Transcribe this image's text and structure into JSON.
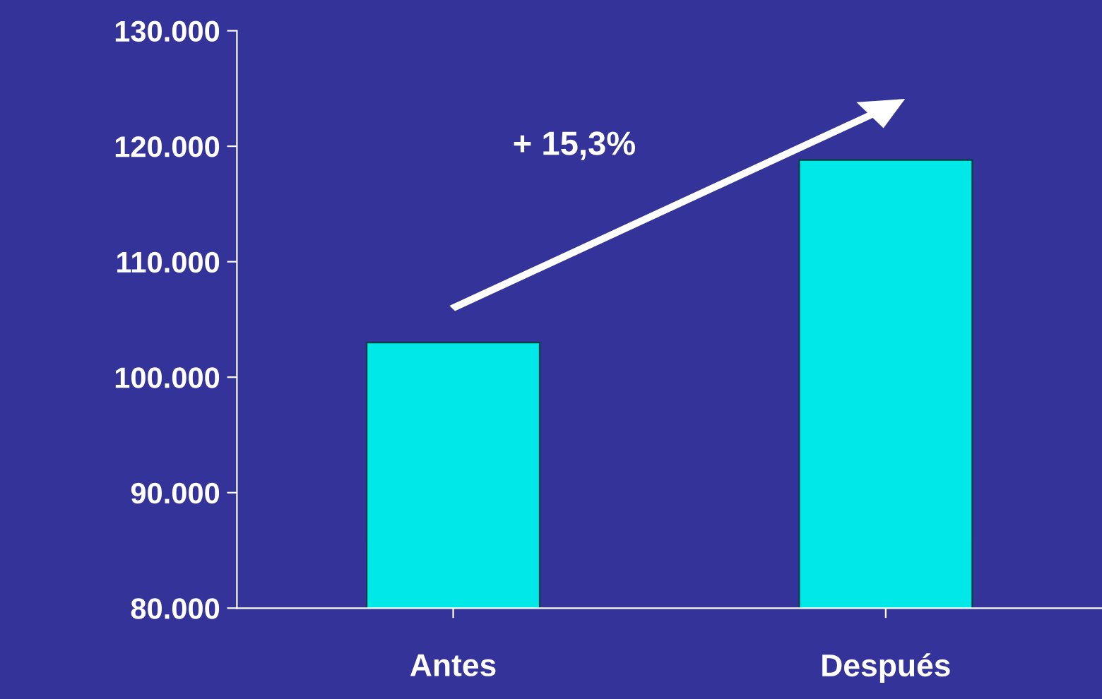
{
  "chart_data": {
    "type": "bar",
    "categories": [
      "Antes",
      "Después"
    ],
    "values": [
      103000,
      118800
    ],
    "color": "#00e8e8",
    "ylim": [
      80000,
      130000
    ],
    "yticks": [
      {
        "value": 80000,
        "label": "80.000"
      },
      {
        "value": 90000,
        "label": "90.000"
      },
      {
        "value": 100000,
        "label": "100.000"
      },
      {
        "value": 110000,
        "label": "110.000"
      },
      {
        "value": 120000,
        "label": "120.000"
      },
      {
        "value": 130000,
        "label": "130.000"
      }
    ],
    "annotations": [
      "+ 15,3%"
    ],
    "grid": false,
    "legend": false
  }
}
